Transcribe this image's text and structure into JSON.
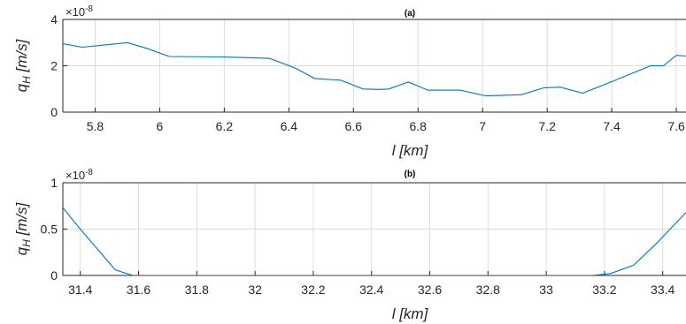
{
  "chart_data": [
    {
      "type": "line",
      "title": "(a)",
      "xlabel": "l [km]",
      "ylabel_main": "q",
      "ylabel_sub": "H",
      "ylabel_unit": "[m/s]",
      "y_exponent_label": "×10",
      "y_exponent_power": "-8",
      "xlim": [
        5.7,
        7.63
      ],
      "ylim": [
        0,
        4
      ],
      "xticks": [
        "5.8",
        "6",
        "6.2",
        "6.4",
        "6.6",
        "6.8",
        "7",
        "7.2",
        "7.4",
        "7.6"
      ],
      "yticks": [
        "0",
        "2",
        "4"
      ],
      "grid": true,
      "color": "#0072BD",
      "x": [
        5.7,
        5.76,
        5.9,
        5.96,
        6.03,
        6.2,
        6.34,
        6.42,
        6.48,
        6.56,
        6.63,
        6.68,
        6.71,
        6.77,
        6.83,
        6.93,
        7.01,
        7.12,
        7.19,
        7.24,
        7.31,
        7.38,
        7.45,
        7.52,
        7.56,
        7.6,
        7.63
      ],
      "y": [
        2.95,
        2.8,
        3.0,
        2.75,
        2.4,
        2.38,
        2.32,
        1.9,
        1.45,
        1.38,
        1.0,
        0.98,
        1.0,
        1.3,
        0.95,
        0.95,
        0.7,
        0.75,
        1.05,
        1.08,
        0.82,
        1.2,
        1.6,
        2.0,
        2.0,
        2.45,
        2.42
      ]
    },
    {
      "type": "line",
      "title": "(b)",
      "xlabel": "l [km]",
      "ylabel_main": "q",
      "ylabel_sub": "H",
      "ylabel_unit": "[m/s]",
      "y_exponent_label": "×10",
      "y_exponent_power": "-8",
      "xlim": [
        31.34,
        33.48
      ],
      "ylim": [
        0,
        1
      ],
      "xticks": [
        "31.4",
        "31.6",
        "31.8",
        "32",
        "32.2",
        "32.4",
        "32.6",
        "32.8",
        "33",
        "33.2",
        "33.4"
      ],
      "yticks": [
        "0",
        "0.5",
        "1"
      ],
      "grid": true,
      "color": "#0072BD",
      "x": [
        31.34,
        31.4,
        31.46,
        31.52,
        31.58,
        31.7,
        32.0,
        32.4,
        32.8,
        33.0,
        33.16,
        33.22,
        33.3,
        33.38,
        33.48
      ],
      "y": [
        0.73,
        0.5,
        0.28,
        0.06,
        0.0,
        0.0,
        0.0,
        0.0,
        0.0,
        0.0,
        0.0,
        0.02,
        0.11,
        0.35,
        0.68
      ]
    }
  ]
}
